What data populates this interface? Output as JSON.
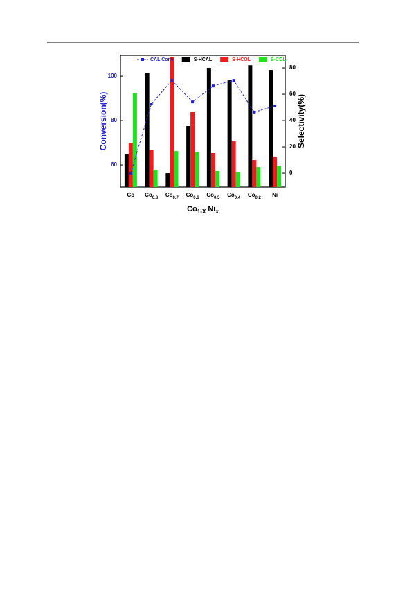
{
  "chart_data": {
    "type": "bar-line",
    "categories": [
      "Co",
      "Co0.8",
      "Co0.7",
      "Co0.6",
      "Co0.5",
      "Co0.4",
      "Co0.2",
      "Ni"
    ],
    "x_label": [
      "Co",
      "1-X",
      " Ni",
      "x"
    ],
    "y_label": "Conversion(%)",
    "y2_label": "Selectivity(%)",
    "ylim": [
      50,
      109.4
    ],
    "yticks": [
      60,
      80,
      100
    ],
    "y2lim": [
      -10.5,
      89.5
    ],
    "y2ticks": [
      0,
      20,
      40,
      60,
      80
    ],
    "series": [
      {
        "name": "CAL Conv",
        "color": "#1f1fd6",
        "kind": "line",
        "values": [
          56.3,
          87.5,
          98.1,
          88.4,
          95.6,
          98.1,
          83.8,
          86.6
        ]
      },
      {
        "name": "S-HCAL",
        "color": "#000000",
        "kind": "bar",
        "axis": "y2",
        "values": [
          14.2,
          76.3,
          0,
          35.8,
          80,
          71,
          82,
          78.4
        ]
      },
      {
        "name": "S-HCOL",
        "color": "#ee1c1c",
        "kind": "bar",
        "axis": "y2",
        "values": [
          23.2,
          17.9,
          88,
          46.8,
          15.3,
          24.2,
          10,
          12.1
        ]
      },
      {
        "name": "S-COL",
        "color": "#22e022",
        "kind": "bar",
        "axis": "y2",
        "values": [
          61,
          2.6,
          16.8,
          16.3,
          1.6,
          1,
          4.7,
          5.8
        ]
      }
    ]
  }
}
